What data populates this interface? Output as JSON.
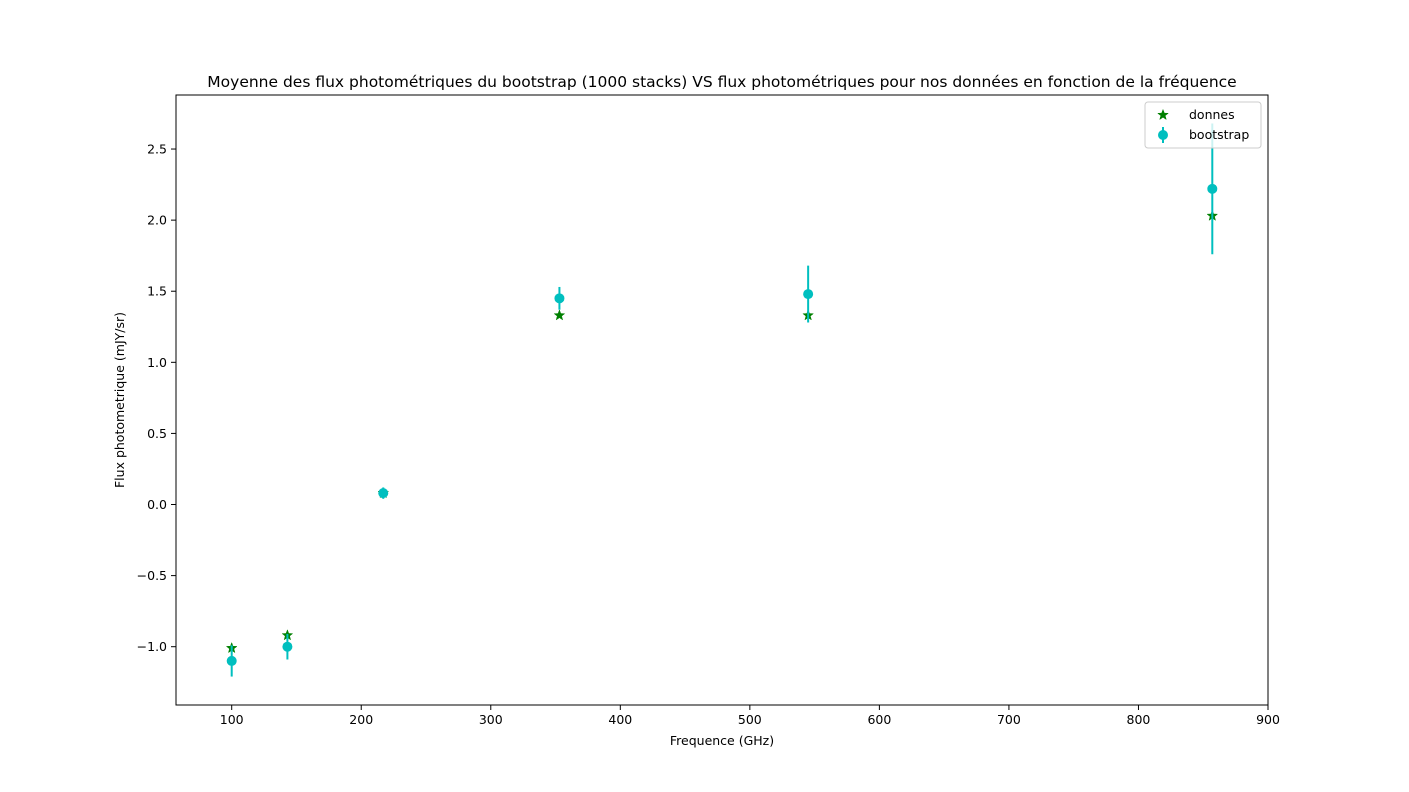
{
  "chart_data": {
    "type": "scatter",
    "title": "Moyenne des flux photométriques du bootstrap (1000 stacks) VS flux photométriques pour nos données en fonction de la fréquence",
    "xlabel": "Frequence (GHz)",
    "ylabel": "Flux photometrique (mJY/sr)",
    "xlim": [
      57,
      900
    ],
    "ylim": [
      -1.41,
      2.88
    ],
    "xticks": [
      100,
      200,
      300,
      400,
      500,
      600,
      700,
      800,
      900
    ],
    "yticks": [
      -1.0,
      -0.5,
      0.0,
      0.5,
      1.0,
      1.5,
      2.0,
      2.5
    ],
    "xtick_labels": [
      "100",
      "200",
      "300",
      "400",
      "500",
      "600",
      "700",
      "800",
      "900"
    ],
    "ytick_labels": [
      "−1.0",
      "−0.5",
      "0.0",
      "0.5",
      "1.0",
      "1.5",
      "2.0",
      "2.5"
    ],
    "grid": false,
    "legend_position": "top-right",
    "series": [
      {
        "name": "donnes",
        "marker": "star",
        "color": "#008000",
        "x": [
          100,
          143,
          217,
          353,
          545,
          857
        ],
        "y": [
          -1.01,
          -0.92,
          0.08,
          1.33,
          1.33,
          2.03
        ]
      },
      {
        "name": "bootstrap",
        "marker": "circle",
        "color": "#00bfbf",
        "x": [
          100,
          143,
          217,
          353,
          545,
          857
        ],
        "y": [
          -1.1,
          -1.0,
          0.08,
          1.45,
          1.48,
          2.22
        ],
        "yerr": [
          0.11,
          0.09,
          0.04,
          0.08,
          0.2,
          0.46
        ]
      }
    ]
  }
}
